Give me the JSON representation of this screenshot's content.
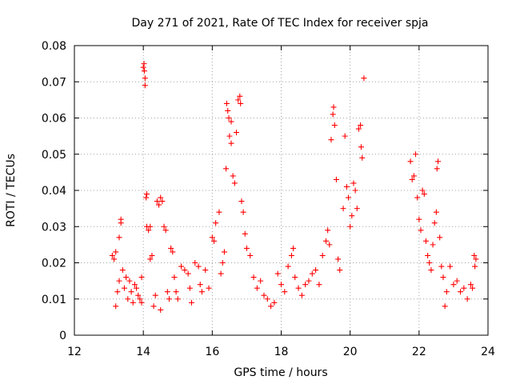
{
  "chart_data": {
    "type": "scatter",
    "title": "Day 271 of 2021, Rate Of TEC Index for receiver spja",
    "xlabel": "GPS time / hours",
    "ylabel": "ROTI / TECUs",
    "xlim": [
      12,
      24
    ],
    "ylim": [
      0,
      0.08
    ],
    "x_ticks": [
      12,
      14,
      16,
      18,
      20,
      22,
      24
    ],
    "x_tick_labels": [
      "12",
      "14",
      "16",
      "18",
      "20",
      "22",
      "24"
    ],
    "y_ticks": [
      0,
      0.01,
      0.02,
      0.03,
      0.04,
      0.05,
      0.06,
      0.07,
      0.08
    ],
    "y_tick_labels": [
      "0",
      "0.01",
      "0.02",
      "0.03",
      "0.04",
      "0.05",
      "0.06",
      "0.07",
      "0.08"
    ],
    "grid": true,
    "marker": "+",
    "color": "#ff0000",
    "series": [
      {
        "name": "ROTI",
        "points": [
          [
            13.1,
            0.022
          ],
          [
            13.15,
            0.021
          ],
          [
            13.2,
            0.023
          ],
          [
            13.2,
            0.008
          ],
          [
            13.25,
            0.012
          ],
          [
            13.3,
            0.015
          ],
          [
            13.3,
            0.027
          ],
          [
            13.35,
            0.031
          ],
          [
            13.35,
            0.032
          ],
          [
            13.4,
            0.018
          ],
          [
            13.45,
            0.013
          ],
          [
            13.5,
            0.016
          ],
          [
            13.55,
            0.01
          ],
          [
            13.6,
            0.015
          ],
          [
            13.65,
            0.012
          ],
          [
            13.7,
            0.009
          ],
          [
            13.75,
            0.014
          ],
          [
            13.8,
            0.013
          ],
          [
            13.85,
            0.011
          ],
          [
            13.9,
            0.01
          ],
          [
            13.95,
            0.009
          ],
          [
            13.95,
            0.016
          ],
          [
            14.0,
            0.074
          ],
          [
            14.02,
            0.075
          ],
          [
            14.03,
            0.073
          ],
          [
            14.05,
            0.069
          ],
          [
            14.05,
            0.071
          ],
          [
            14.08,
            0.038
          ],
          [
            14.1,
            0.039
          ],
          [
            14.1,
            0.03
          ],
          [
            14.15,
            0.029
          ],
          [
            14.2,
            0.03
          ],
          [
            14.2,
            0.021
          ],
          [
            14.25,
            0.022
          ],
          [
            14.3,
            0.008
          ],
          [
            14.35,
            0.011
          ],
          [
            14.4,
            0.037
          ],
          [
            14.45,
            0.036
          ],
          [
            14.5,
            0.038
          ],
          [
            14.55,
            0.037
          ],
          [
            14.5,
            0.007
          ],
          [
            14.6,
            0.03
          ],
          [
            14.65,
            0.029
          ],
          [
            14.7,
            0.012
          ],
          [
            14.75,
            0.01
          ],
          [
            14.8,
            0.024
          ],
          [
            14.85,
            0.023
          ],
          [
            14.9,
            0.016
          ],
          [
            14.95,
            0.012
          ],
          [
            15.0,
            0.01
          ],
          [
            15.1,
            0.019
          ],
          [
            15.2,
            0.018
          ],
          [
            15.3,
            0.017
          ],
          [
            15.35,
            0.013
          ],
          [
            15.4,
            0.009
          ],
          [
            15.5,
            0.02
          ],
          [
            15.6,
            0.019
          ],
          [
            15.65,
            0.014
          ],
          [
            15.7,
            0.012
          ],
          [
            15.8,
            0.018
          ],
          [
            15.9,
            0.013
          ],
          [
            16.0,
            0.027
          ],
          [
            16.05,
            0.026
          ],
          [
            16.1,
            0.031
          ],
          [
            16.2,
            0.034
          ],
          [
            16.25,
            0.017
          ],
          [
            16.3,
            0.02
          ],
          [
            16.35,
            0.023
          ],
          [
            16.4,
            0.046
          ],
          [
            16.42,
            0.064
          ],
          [
            16.45,
            0.062
          ],
          [
            16.48,
            0.06
          ],
          [
            16.5,
            0.055
          ],
          [
            16.55,
            0.053
          ],
          [
            16.55,
            0.059
          ],
          [
            16.6,
            0.044
          ],
          [
            16.65,
            0.042
          ],
          [
            16.7,
            0.056
          ],
          [
            16.75,
            0.065
          ],
          [
            16.8,
            0.066
          ],
          [
            16.82,
            0.064
          ],
          [
            16.85,
            0.037
          ],
          [
            16.9,
            0.034
          ],
          [
            16.95,
            0.028
          ],
          [
            17.0,
            0.024
          ],
          [
            17.1,
            0.022
          ],
          [
            17.2,
            0.016
          ],
          [
            17.3,
            0.013
          ],
          [
            17.4,
            0.015
          ],
          [
            17.5,
            0.011
          ],
          [
            17.6,
            0.01
          ],
          [
            17.7,
            0.008
          ],
          [
            17.8,
            0.009
          ],
          [
            17.9,
            0.017
          ],
          [
            18.0,
            0.014
          ],
          [
            18.1,
            0.012
          ],
          [
            18.2,
            0.019
          ],
          [
            18.3,
            0.022
          ],
          [
            18.35,
            0.024
          ],
          [
            18.4,
            0.016
          ],
          [
            18.5,
            0.013
          ],
          [
            18.6,
            0.011
          ],
          [
            18.7,
            0.014
          ],
          [
            18.8,
            0.015
          ],
          [
            18.9,
            0.017
          ],
          [
            19.0,
            0.018
          ],
          [
            19.1,
            0.014
          ],
          [
            19.2,
            0.022
          ],
          [
            19.3,
            0.026
          ],
          [
            19.35,
            0.029
          ],
          [
            19.4,
            0.025
          ],
          [
            19.45,
            0.054
          ],
          [
            19.5,
            0.061
          ],
          [
            19.52,
            0.063
          ],
          [
            19.55,
            0.058
          ],
          [
            19.6,
            0.043
          ],
          [
            19.65,
            0.021
          ],
          [
            19.7,
            0.018
          ],
          [
            19.8,
            0.035
          ],
          [
            19.85,
            0.055
          ],
          [
            19.9,
            0.041
          ],
          [
            19.95,
            0.038
          ],
          [
            20.0,
            0.03
          ],
          [
            20.05,
            0.033
          ],
          [
            20.1,
            0.042
          ],
          [
            20.15,
            0.04
          ],
          [
            20.2,
            0.035
          ],
          [
            20.25,
            0.057
          ],
          [
            20.3,
            0.058
          ],
          [
            20.32,
            0.052
          ],
          [
            20.35,
            0.049
          ],
          [
            20.4,
            0.071
          ],
          [
            21.75,
            0.048
          ],
          [
            21.8,
            0.043
          ],
          [
            21.85,
            0.044
          ],
          [
            21.9,
            0.05
          ],
          [
            21.95,
            0.038
          ],
          [
            22.0,
            0.032
          ],
          [
            22.05,
            0.029
          ],
          [
            22.1,
            0.04
          ],
          [
            22.15,
            0.039
          ],
          [
            22.2,
            0.026
          ],
          [
            22.25,
            0.022
          ],
          [
            22.3,
            0.02
          ],
          [
            22.35,
            0.018
          ],
          [
            22.4,
            0.025
          ],
          [
            22.45,
            0.031
          ],
          [
            22.5,
            0.034
          ],
          [
            22.52,
            0.046
          ],
          [
            22.55,
            0.048
          ],
          [
            22.6,
            0.027
          ],
          [
            22.65,
            0.019
          ],
          [
            22.7,
            0.016
          ],
          [
            22.75,
            0.008
          ],
          [
            22.8,
            0.012
          ],
          [
            22.9,
            0.019
          ],
          [
            23.0,
            0.014
          ],
          [
            23.1,
            0.015
          ],
          [
            23.2,
            0.012
          ],
          [
            23.3,
            0.013
          ],
          [
            23.4,
            0.01
          ],
          [
            23.5,
            0.014
          ],
          [
            23.55,
            0.013
          ],
          [
            23.6,
            0.022
          ],
          [
            23.62,
            0.019
          ],
          [
            23.65,
            0.021
          ]
        ]
      }
    ]
  }
}
